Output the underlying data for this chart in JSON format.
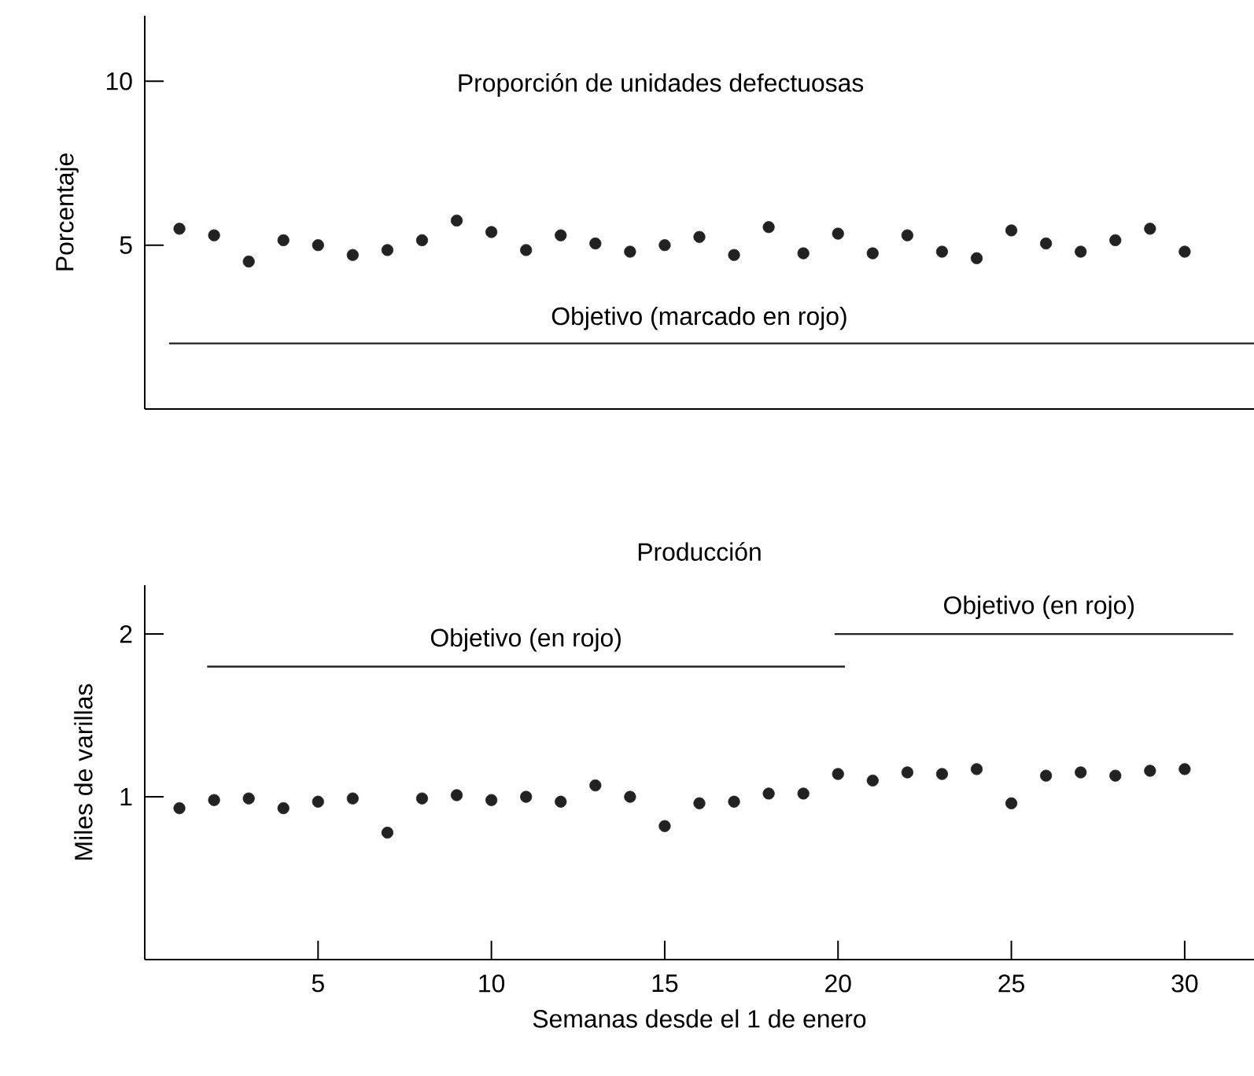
{
  "chart_data": [
    {
      "type": "scatter",
      "title": "Proporción de unidades defectuosas",
      "ylabel": "Porcentaje",
      "color": "#222222",
      "marker": "circle",
      "x": [
        1,
        2,
        3,
        4,
        5,
        6,
        7,
        8,
        9,
        10,
        11,
        12,
        13,
        14,
        15,
        16,
        17,
        18,
        19,
        20,
        21,
        22,
        23,
        24,
        25,
        26,
        27,
        28,
        29,
        30
      ],
      "values": [
        5.5,
        5.3,
        4.5,
        5.15,
        5.0,
        4.7,
        4.85,
        5.15,
        5.75,
        5.4,
        4.85,
        5.3,
        5.05,
        4.8,
        5.0,
        5.25,
        4.7,
        5.55,
        4.75,
        5.35,
        4.75,
        5.3,
        4.8,
        4.6,
        5.45,
        5.05,
        4.8,
        5.15,
        5.5,
        4.8
      ],
      "xlim": [
        0,
        32
      ],
      "ylim": [
        0,
        12
      ],
      "yticks": [
        5,
        10
      ],
      "tick_labels": "y",
      "ref_lines": [
        {
          "axis": "y",
          "value": 2,
          "label": "Objetivo (marcado en rojo)"
        }
      ]
    },
    {
      "type": "scatter",
      "title": "Producción",
      "xlabel": "Semanas desde el 1 de enero",
      "ylabel": "Miles de varillas",
      "series": [
        {
          "type": "scatter",
          "color": "#222222",
          "marker": "circle",
          "x": [
            1,
            2,
            3,
            4,
            5,
            6,
            7,
            8,
            9,
            10,
            11,
            12,
            13,
            14,
            15,
            16,
            17,
            18,
            19,
            20,
            21,
            22,
            23,
            24,
            25,
            26,
            27,
            28,
            29,
            30
          ],
          "values": [
            0.93,
            0.98,
            0.99,
            0.93,
            0.97,
            0.99,
            0.78,
            0.99,
            1.01,
            0.98,
            1.0,
            0.97,
            1.07,
            1.0,
            0.82,
            0.96,
            0.97,
            1.02,
            1.02,
            1.14,
            1.1,
            1.15,
            1.14,
            1.17,
            0.96,
            1.13,
            1.15,
            1.13,
            1.16,
            1.17
          ]
        },
        {
          "type": "line",
          "color": "#222222",
          "marker": "none",
          "x": [
            1.8,
            20.2
          ],
          "values": [
            1.8,
            1.8
          ]
        },
        {
          "type": "line",
          "color": "#222222",
          "marker": "none",
          "x": [
            19.9,
            31.4
          ],
          "values": [
            2,
            2
          ]
        }
      ],
      "xlim": [
        0,
        32
      ],
      "ylim": [
        0,
        2.3
      ],
      "xticks": [
        5,
        10,
        15,
        20,
        25,
        30
      ],
      "yticks": [
        1,
        2
      ],
      "annotations": [
        {
          "text": "Objetivo (en rojo)",
          "x": 11,
          "y": 1.8
        },
        {
          "text": "Objetivo (en rojo)",
          "x": 25.8,
          "y": 2
        }
      ]
    }
  ]
}
